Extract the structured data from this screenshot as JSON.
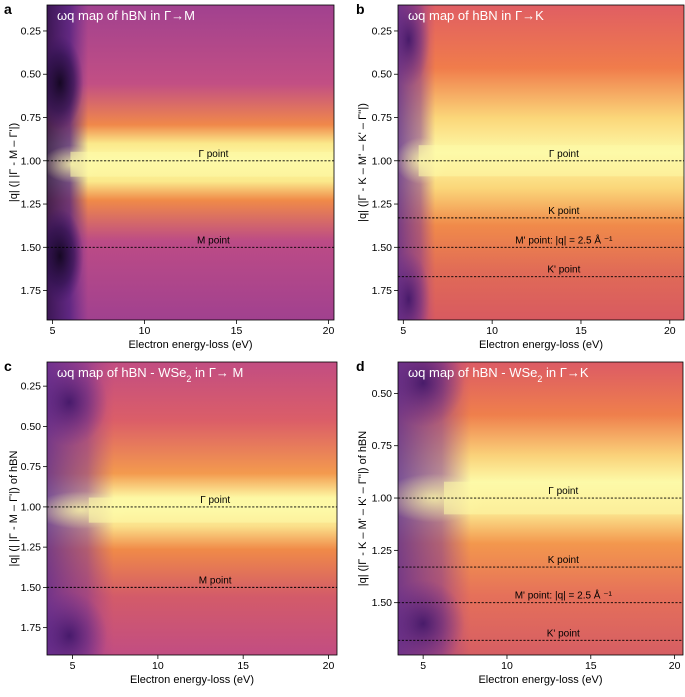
{
  "chart_data": [
    {
      "type": "heatmap",
      "panel_label": "a",
      "title": "ωq map of hBN in Γ→M",
      "xlabel": "Electron energy-loss (eV)",
      "ylabel": "|q| (| |Γ - M – Γ'|)",
      "xlim": [
        4.7,
        20.3
      ],
      "ylim": [
        1.92,
        0.1
      ],
      "xticks": [
        {
          "v": 5,
          "label": "5"
        },
        {
          "v": 10,
          "label": "10"
        },
        {
          "v": 15,
          "label": "15"
        },
        {
          "v": 20,
          "label": "20"
        }
      ],
      "yticks": [
        {
          "v": 0.25,
          "label": "0.25"
        },
        {
          "v": 0.5,
          "label": "0.50"
        },
        {
          "v": 0.75,
          "label": "0.75"
        },
        {
          "v": 1.0,
          "label": "1.00"
        },
        {
          "v": 1.25,
          "label": "1.25"
        },
        {
          "v": 1.5,
          "label": "1.50"
        },
        {
          "v": 1.75,
          "label": "1.75"
        }
      ],
      "markers": [
        {
          "q": 1.0,
          "label": "Γ point"
        },
        {
          "q": 1.5,
          "label": "M point"
        }
      ],
      "features": {
        "dark_band_edge_eV": 6.3,
        "bright_band_center_q": 1.02,
        "bright_band_halfwidth": 0.12,
        "darkest": [
          [
            5.4,
            0.55
          ],
          [
            5.4,
            1.55
          ]
        ]
      }
    },
    {
      "type": "heatmap",
      "panel_label": "b",
      "title": "ωq map of hBN in Γ→K",
      "xlabel": "Electron energy-loss (eV)",
      "ylabel": "|q| (|Γ - K – M' – K' – Γ''|)",
      "xlim": [
        4.7,
        20.8
      ],
      "ylim": [
        1.92,
        0.1
      ],
      "xticks": [
        {
          "v": 5,
          "label": "5"
        },
        {
          "v": 10,
          "label": "10"
        },
        {
          "v": 15,
          "label": "15"
        },
        {
          "v": 20,
          "label": "20"
        }
      ],
      "yticks": [
        {
          "v": 0.25,
          "label": "0.25"
        },
        {
          "v": 0.5,
          "label": "0.50"
        },
        {
          "v": 0.75,
          "label": "0.75"
        },
        {
          "v": 1.0,
          "label": "1.00"
        },
        {
          "v": 1.25,
          "label": "1.25"
        },
        {
          "v": 1.5,
          "label": "1.50"
        },
        {
          "v": 1.75,
          "label": "1.75"
        }
      ],
      "markers": [
        {
          "q": 1.0,
          "label": "Γ point"
        },
        {
          "q": 1.33,
          "label": "K point"
        },
        {
          "q": 1.5,
          "label": "M' point: |q| = 2.5 Å ⁻¹"
        },
        {
          "q": 1.67,
          "label": "K' point"
        }
      ],
      "features": {
        "dark_band_edge_eV": 6.2,
        "bright_band_center_q": 1.0,
        "bright_band_halfwidth": 0.15,
        "darkest": [
          [
            5.3,
            1.8
          ],
          [
            5.3,
            0.3
          ]
        ]
      }
    },
    {
      "type": "heatmap",
      "panel_label": "c",
      "title": "ωq map of hBN - WSe",
      "title_sub": "2",
      "title_tail": " in Γ→ M",
      "xlabel": "Electron energy-loss (eV)",
      "ylabel": "|q| (| |Γ - M – Γ'|) of hBN",
      "xlim": [
        3.5,
        20.5
      ],
      "ylim": [
        1.92,
        0.1
      ],
      "xticks": [
        {
          "v": 5,
          "label": "5"
        },
        {
          "v": 10,
          "label": "10"
        },
        {
          "v": 15,
          "label": "15"
        },
        {
          "v": 20,
          "label": "20"
        }
      ],
      "yticks": [
        {
          "v": 0.25,
          "label": "0.25"
        },
        {
          "v": 0.5,
          "label": "0.50"
        },
        {
          "v": 0.75,
          "label": "0.75"
        },
        {
          "v": 1.0,
          "label": "1.00"
        },
        {
          "v": 1.25,
          "label": "1.25"
        },
        {
          "v": 1.5,
          "label": "1.50"
        },
        {
          "v": 1.75,
          "label": "1.75"
        }
      ],
      "markers": [
        {
          "q": 1.0,
          "label": "Γ point"
        },
        {
          "q": 1.5,
          "label": "M point"
        }
      ],
      "features": {
        "dark_band_edge_eV": 6.3,
        "bright_band_center_q": 1.02,
        "bright_band_halfwidth": 0.13,
        "darkest": [
          [
            4.8,
            0.35
          ],
          [
            4.8,
            1.8
          ]
        ]
      }
    },
    {
      "type": "heatmap",
      "panel_label": "d",
      "title": "ωq map of hBN - WSe",
      "title_sub": "2",
      "title_tail": " in Γ→K",
      "xlabel": "Electron energy-loss (eV)",
      "ylabel": "|q| (|Γ - K – M' – K' – Γ''|) of hBN",
      "xlim": [
        3.5,
        20.5
      ],
      "ylim": [
        1.75,
        0.35
      ],
      "xticks": [
        {
          "v": 5,
          "label": "5"
        },
        {
          "v": 10,
          "label": "10"
        },
        {
          "v": 15,
          "label": "15"
        },
        {
          "v": 20,
          "label": "20"
        }
      ],
      "yticks": [
        {
          "v": 0.5,
          "label": "0.50"
        },
        {
          "v": 0.75,
          "label": "0.75"
        },
        {
          "v": 1.0,
          "label": "1.00"
        },
        {
          "v": 1.25,
          "label": "1.25"
        },
        {
          "v": 1.5,
          "label": "1.50"
        }
      ],
      "markers": [
        {
          "q": 1.0,
          "label": "Γ point"
        },
        {
          "q": 1.33,
          "label": "K point"
        },
        {
          "q": 1.5,
          "label": "M' point: |q| = 2.5 Å ⁻¹"
        },
        {
          "q": 1.68,
          "label": "K' point"
        }
      ],
      "features": {
        "dark_band_edge_eV": 6.6,
        "bright_band_center_q": 1.0,
        "bright_band_halfwidth": 0.13,
        "darkest": [
          [
            5.0,
            0.45
          ],
          [
            5.0,
            1.6
          ]
        ]
      }
    }
  ],
  "colors": {
    "dark": "#1a0a2e",
    "purple": "#5b2a91",
    "magenta": "#b03a8e",
    "orange": "#f2803f",
    "yellow": "#fcffa4"
  }
}
